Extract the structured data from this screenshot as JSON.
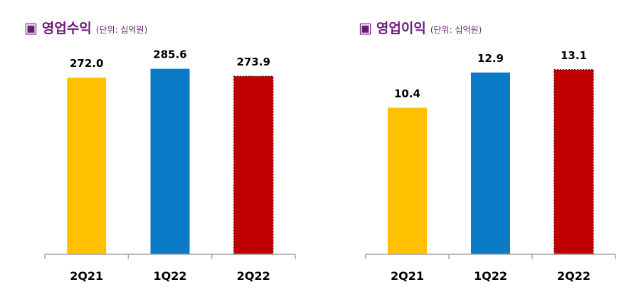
{
  "chart_data": [
    {
      "type": "bar",
      "title": "영업수익",
      "unit": "(단위: 십억원)",
      "title_icon": "square-bullet-icon",
      "categories": [
        "2Q21",
        "1Q22",
        "2Q22"
      ],
      "values": [
        272.0,
        285.6,
        273.9
      ],
      "value_labels": [
        "272.0",
        "285.6",
        "273.9"
      ],
      "colors": [
        "#ffc000",
        "#0b7bc8",
        "#c00000"
      ],
      "highlight_last": true,
      "ylim": [
        0,
        295
      ],
      "grid": false,
      "legend": "none"
    },
    {
      "type": "bar",
      "title": "영업이익",
      "unit": "(단위: 십억원)",
      "title_icon": "square-bullet-icon",
      "categories": [
        "2Q21",
        "1Q22",
        "2Q22"
      ],
      "values": [
        10.4,
        12.9,
        13.1
      ],
      "value_labels": [
        "10.4",
        "12.9",
        "13.1"
      ],
      "colors": [
        "#ffc000",
        "#0b7bc8",
        "#c00000"
      ],
      "highlight_last": true,
      "ylim": [
        0,
        13.6
      ],
      "grid": false,
      "legend": "none"
    }
  ],
  "theme": {
    "title_color": "#6b1a78",
    "axis_color": "#a6a6a6",
    "label_color": "#000000"
  }
}
